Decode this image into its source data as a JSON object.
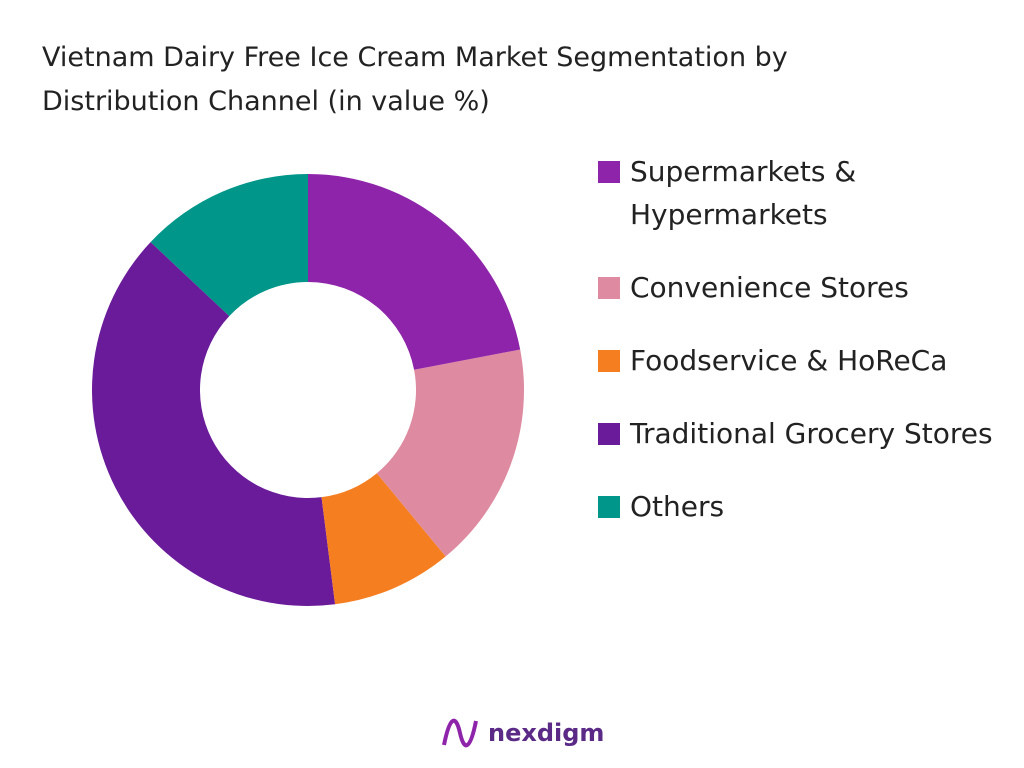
{
  "chart_data": {
    "type": "donut",
    "title": "Vietnam Dairy Free Ice Cream Market Segmentation by Distribution Channel (in value %)",
    "categories": [
      "Supermarkets & Hypermarkets",
      "Convenience Stores",
      "Foodservice & HoReCa",
      "Traditional Grocery Stores",
      "Others"
    ],
    "values": [
      22,
      17,
      9,
      39,
      13
    ],
    "colors": [
      "#8e24aa",
      "#de8aa0",
      "#f57f20",
      "#6a1b9a",
      "#00968a"
    ],
    "legend": "right"
  },
  "footer": {
    "brand": "nexdigm"
  }
}
